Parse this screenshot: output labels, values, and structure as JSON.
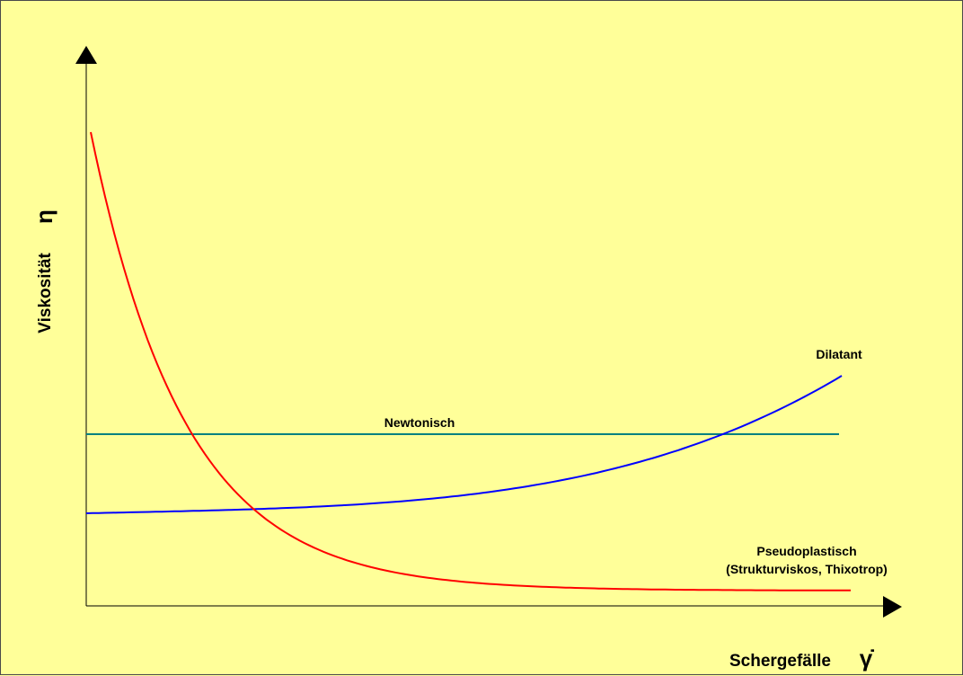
{
  "chart_data": {
    "type": "line",
    "xlabel": "Schergefälle",
    "xsymbol": "γ̇",
    "ylabel": "Viskosität",
    "ysymbol": "η",
    "background_color": "#ffff99",
    "grid": false,
    "axis_ticks": false,
    "series": [
      {
        "name": "Newtonisch",
        "color": "#008080",
        "shape": "constant"
      },
      {
        "name": "Dilatant",
        "color": "#0000ff",
        "shape": "increasing"
      },
      {
        "name": "Pseudoplastisch",
        "name_line2": "(Strukturviskos, Thixotrop)",
        "color": "#ff0000",
        "shape": "decreasing"
      }
    ]
  }
}
